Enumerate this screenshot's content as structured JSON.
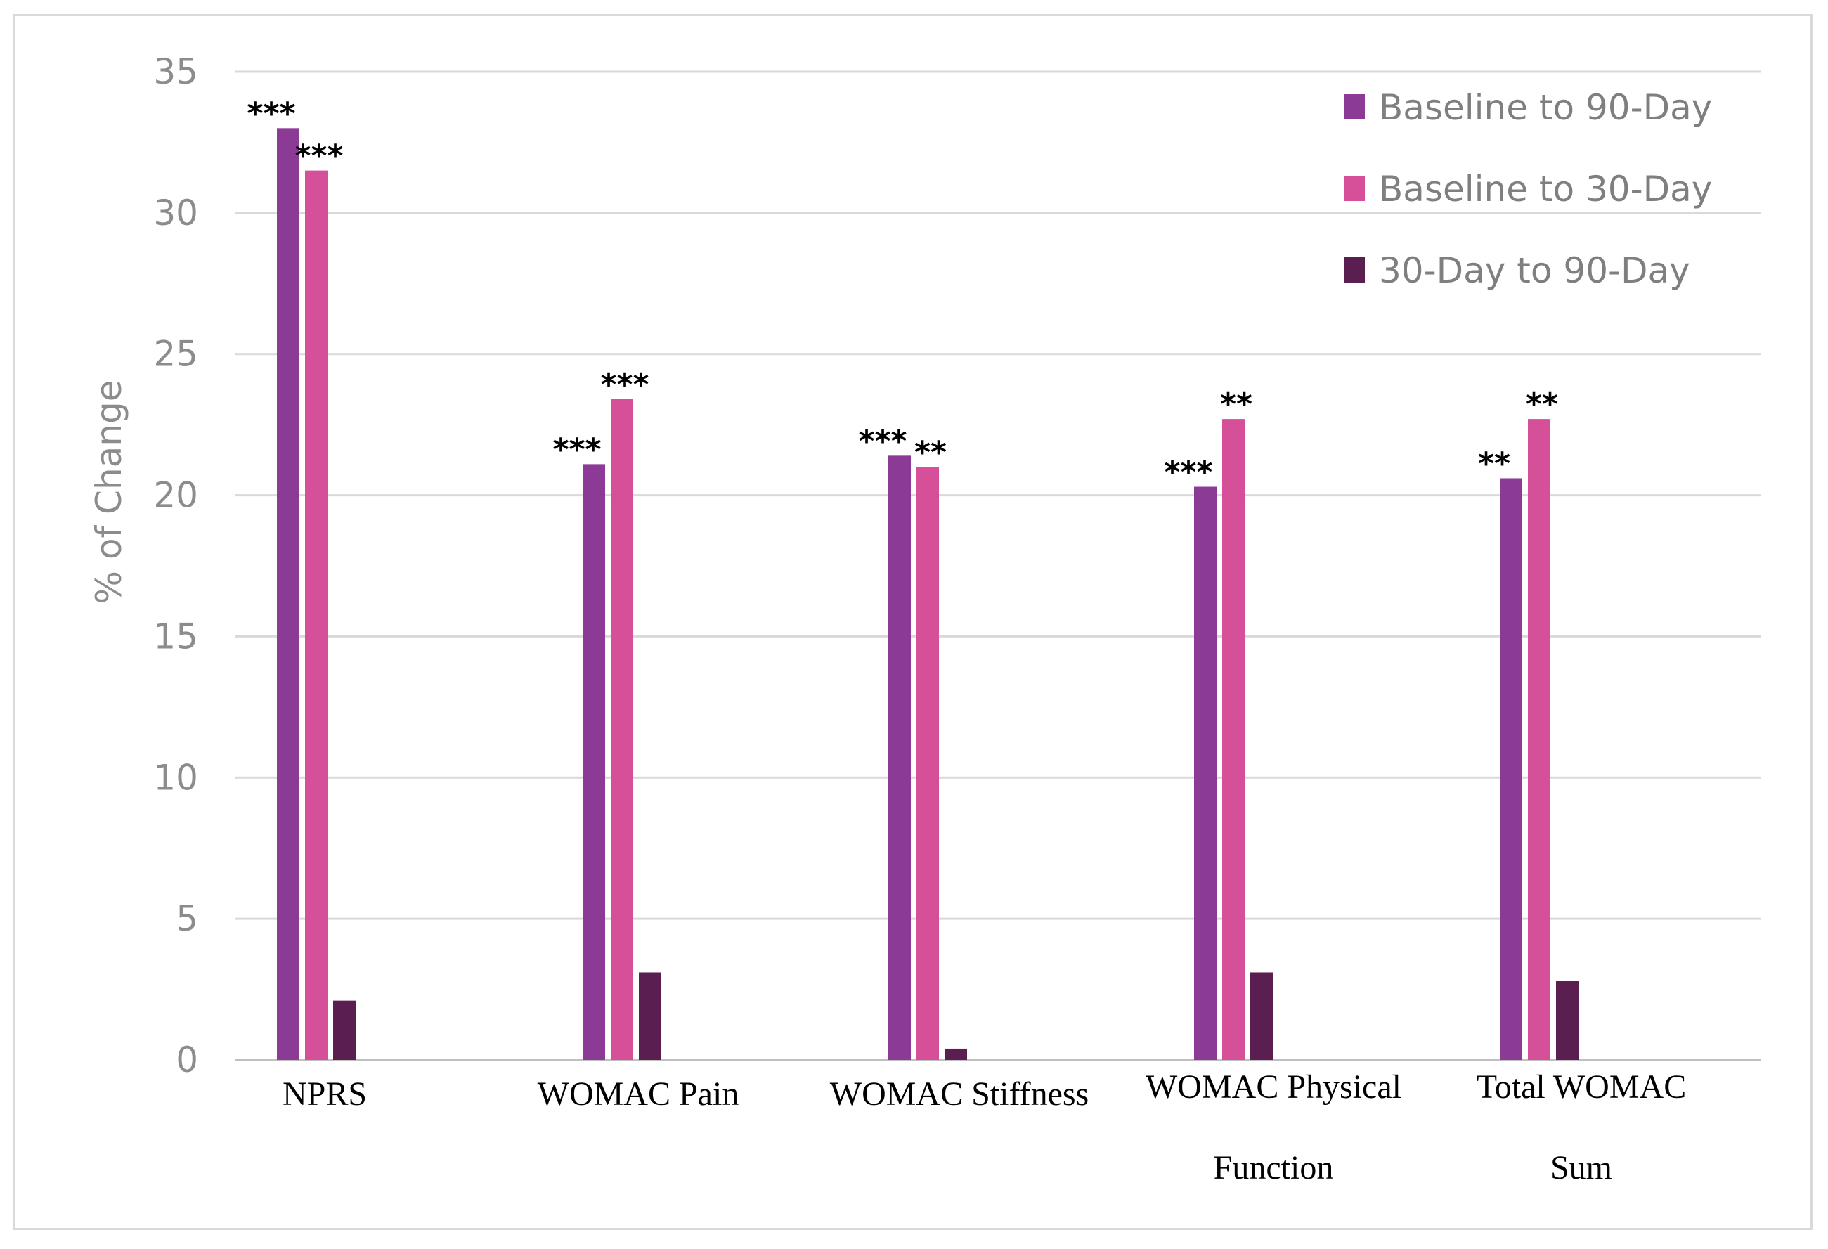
{
  "chart_data": {
    "type": "bar",
    "title": "",
    "xlabel": "",
    "ylabel": "% of Change",
    "ylim": [
      0,
      35
    ],
    "yticks": [
      0,
      5,
      10,
      15,
      20,
      25,
      30,
      35
    ],
    "grid": true,
    "legend_position": "top-right",
    "categories": [
      [
        "NPRS"
      ],
      [
        "WOMAC Pain"
      ],
      [
        "WOMAC Stiffness"
      ],
      [
        "WOMAC Physical",
        "Function"
      ],
      [
        "Total WOMAC",
        "Sum"
      ]
    ],
    "series": [
      {
        "name": "Baseline to 90-Day",
        "color": "#8b3a96",
        "values": [
          33.0,
          21.1,
          21.4,
          20.3,
          20.6
        ],
        "significance": [
          "***",
          "***",
          "***",
          "***",
          "**"
        ]
      },
      {
        "name": "Baseline to 30-Day",
        "color": "#d54f99",
        "values": [
          31.5,
          23.4,
          21.0,
          22.7,
          22.7
        ],
        "significance": [
          "***",
          "***",
          "**",
          "**",
          "**"
        ]
      },
      {
        "name": "30-Day to 90-Day",
        "color": "#5a1e50",
        "values": [
          2.1,
          3.1,
          0.4,
          3.1,
          2.8
        ],
        "significance": [
          "",
          "",
          "",
          "",
          ""
        ]
      }
    ]
  }
}
